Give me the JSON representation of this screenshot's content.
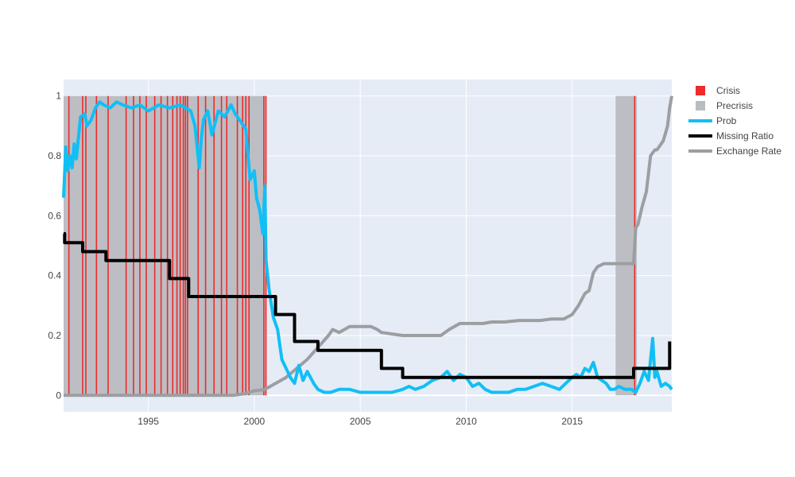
{
  "chart_data": {
    "type": "line",
    "title": "",
    "xlabel": "",
    "ylabel": "",
    "xlim": [
      1991.0,
      2019.7
    ],
    "ylim": [
      -0.055,
      1.055
    ],
    "x_ticks": [
      1995,
      2000,
      2005,
      2010,
      2015
    ],
    "y_ticks": [
      0,
      0.2,
      0.4,
      0.6,
      0.8,
      1
    ],
    "y_tick_labels": [
      "0",
      "0.2",
      "0.4",
      "0.6",
      "0.8",
      "1"
    ],
    "grid": true,
    "legend_position": "top-right",
    "colors": {
      "plot_bg": "#E5ECF6",
      "crisis": "#EE2A2A",
      "precrisis": "#B9BCC1",
      "prob": "#11BFF5",
      "missing_ratio": "#000000",
      "exchange_rate": "#9C9EA1"
    },
    "legend": [
      {
        "label": "Crisis",
        "kind": "box",
        "color_key": "crisis"
      },
      {
        "label": "Precrisis",
        "kind": "box",
        "color_key": "precrisis"
      },
      {
        "label": "Prob",
        "kind": "line",
        "color_key": "prob"
      },
      {
        "label": "Missing Ratio",
        "kind": "line",
        "color_key": "missing_ratio"
      },
      {
        "label": "Exchange Rate",
        "kind": "line",
        "color_key": "exchange_rate"
      }
    ],
    "precrisis_periods": [
      [
        1991.0,
        2000.55
      ],
      [
        2017.05,
        2018.05
      ]
    ],
    "crisis_dates": [
      1991.25,
      1991.9,
      1992.05,
      1992.55,
      1993.1,
      1993.95,
      1994.3,
      1994.6,
      1994.9,
      1995.3,
      1995.6,
      1995.9,
      1996.15,
      1996.35,
      1996.5,
      1996.65,
      1996.75,
      1996.85,
      1997.35,
      1997.7,
      1998.1,
      1998.45,
      1998.7,
      1999.2,
      1999.45,
      1999.6,
      1999.75,
      2000.45,
      2000.55,
      2017.95
    ],
    "series": [
      {
        "name": "Prob",
        "x": [
          1991.0,
          1991.1,
          1991.2,
          1991.3,
          1991.4,
          1991.5,
          1991.6,
          1991.8,
          1992.0,
          1992.1,
          1992.3,
          1992.5,
          1992.7,
          1992.9,
          1993.2,
          1993.5,
          1993.8,
          1994.2,
          1994.6,
          1995.0,
          1995.5,
          1996.0,
          1996.5,
          1997.0,
          1997.2,
          1997.4,
          1997.5,
          1997.6,
          1997.8,
          1998.0,
          1998.3,
          1998.6,
          1998.9,
          1999.1,
          1999.3,
          1999.6,
          1999.8,
          2000.0,
          2000.1,
          2000.25,
          2000.4,
          2000.5,
          2000.55,
          2000.7,
          2000.9,
          2001.1,
          2001.3,
          2001.5,
          2001.7,
          2001.9,
          2002.1,
          2002.3,
          2002.5,
          2002.8,
          2003.0,
          2003.3,
          2003.6,
          2004.0,
          2004.5,
          2005.0,
          2005.5,
          2006.0,
          2006.5,
          2007.0,
          2007.3,
          2007.6,
          2008.0,
          2008.4,
          2008.8,
          2009.1,
          2009.4,
          2009.7,
          2010.0,
          2010.3,
          2010.6,
          2010.9,
          2011.2,
          2011.6,
          2012.0,
          2012.4,
          2012.8,
          2013.2,
          2013.6,
          2014.0,
          2014.4,
          2014.7,
          2015.0,
          2015.2,
          2015.4,
          2015.6,
          2015.8,
          2016.0,
          2016.2,
          2016.4,
          2016.6,
          2016.8,
          2017.0,
          2017.2,
          2017.5,
          2017.8,
          2018.0,
          2018.2,
          2018.4,
          2018.6,
          2018.8,
          2018.9,
          2019.0,
          2019.2,
          2019.4,
          2019.6,
          2019.7
        ],
        "y": [
          0.66,
          0.83,
          0.75,
          0.8,
          0.76,
          0.84,
          0.79,
          0.93,
          0.94,
          0.9,
          0.92,
          0.96,
          0.98,
          0.97,
          0.96,
          0.98,
          0.97,
          0.96,
          0.97,
          0.95,
          0.97,
          0.96,
          0.97,
          0.95,
          0.9,
          0.76,
          0.86,
          0.92,
          0.95,
          0.87,
          0.95,
          0.93,
          0.97,
          0.94,
          0.92,
          0.89,
          0.72,
          0.75,
          0.66,
          0.62,
          0.54,
          0.7,
          0.45,
          0.35,
          0.26,
          0.22,
          0.12,
          0.09,
          0.06,
          0.04,
          0.1,
          0.05,
          0.08,
          0.04,
          0.02,
          0.01,
          0.01,
          0.02,
          0.02,
          0.01,
          0.01,
          0.01,
          0.01,
          0.02,
          0.03,
          0.02,
          0.03,
          0.05,
          0.06,
          0.08,
          0.05,
          0.07,
          0.06,
          0.03,
          0.04,
          0.02,
          0.01,
          0.01,
          0.01,
          0.02,
          0.02,
          0.03,
          0.04,
          0.03,
          0.02,
          0.04,
          0.06,
          0.07,
          0.06,
          0.09,
          0.08,
          0.11,
          0.06,
          0.05,
          0.04,
          0.02,
          0.02,
          0.03,
          0.02,
          0.02,
          0.01,
          0.04,
          0.08,
          0.05,
          0.19,
          0.06,
          0.08,
          0.03,
          0.04,
          0.03,
          0.02
        ]
      },
      {
        "name": "Missing Ratio",
        "x": [
          1991.0,
          1991.05,
          1991.05,
          1991.9,
          1991.9,
          1993.0,
          1993.0,
          1996.0,
          1996.0,
          1996.9,
          1996.9,
          2001.0,
          2001.0,
          2001.9,
          2001.9,
          2003.0,
          2003.0,
          2006.0,
          2006.0,
          2007.0,
          2007.0,
          2017.9,
          2017.9,
          2019.6,
          2019.6
        ],
        "y": [
          0.54,
          0.54,
          0.51,
          0.51,
          0.48,
          0.48,
          0.45,
          0.45,
          0.39,
          0.39,
          0.33,
          0.33,
          0.27,
          0.27,
          0.18,
          0.18,
          0.15,
          0.15,
          0.09,
          0.09,
          0.06,
          0.06,
          0.09,
          0.09,
          0.18
        ]
      },
      {
        "name": "Exchange Rate",
        "x": [
          1991.0,
          1995.0,
          1999.0,
          1999.5,
          2000.0,
          2000.5,
          2001.0,
          2001.5,
          2002.0,
          2002.5,
          2003.0,
          2003.5,
          2003.7,
          2004.0,
          2004.5,
          2005.0,
          2005.5,
          2005.8,
          2006.0,
          2007.0,
          2007.2,
          2008.0,
          2008.8,
          2009.2,
          2009.7,
          2010.2,
          2010.8,
          2011.2,
          2011.8,
          2012.5,
          2013.5,
          2014.0,
          2014.6,
          2015.0,
          2015.3,
          2015.6,
          2015.8,
          2016.0,
          2016.2,
          2016.5,
          2017.0,
          2017.5,
          2017.9,
          2018.0,
          2018.1,
          2018.3,
          2018.5,
          2018.7,
          2018.9,
          2019.0,
          2019.1,
          2019.3,
          2019.5,
          2019.6,
          2019.7
        ],
        "y": [
          0.0,
          0.0,
          0.0,
          0.005,
          0.015,
          0.02,
          0.04,
          0.06,
          0.09,
          0.12,
          0.16,
          0.2,
          0.22,
          0.21,
          0.23,
          0.23,
          0.23,
          0.22,
          0.21,
          0.2,
          0.2,
          0.2,
          0.2,
          0.22,
          0.24,
          0.24,
          0.24,
          0.245,
          0.245,
          0.25,
          0.25,
          0.255,
          0.255,
          0.27,
          0.3,
          0.34,
          0.35,
          0.41,
          0.43,
          0.44,
          0.44,
          0.44,
          0.44,
          0.56,
          0.57,
          0.63,
          0.68,
          0.8,
          0.82,
          0.82,
          0.83,
          0.85,
          0.9,
          0.96,
          1.0
        ]
      }
    ]
  }
}
